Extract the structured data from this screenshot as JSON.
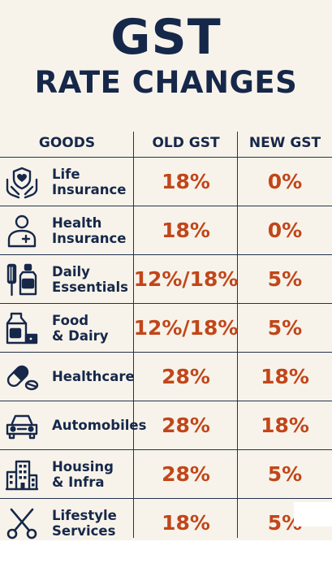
{
  "title": {
    "line1": "GST",
    "line2": "RATE CHANGES"
  },
  "colors": {
    "navy": "#16284a",
    "rate": "#c1461a",
    "background": "#f8f3ea"
  },
  "table": {
    "headers": {
      "goods": "GOODS",
      "old": "OLD GST",
      "new": "NEW GST"
    },
    "rows": [
      {
        "icon": "hands-shield-heart-icon",
        "goods": "Life\nInsurance",
        "old": "18%",
        "new": "0%"
      },
      {
        "icon": "person-medical-icon",
        "goods": "Health\nInsurance",
        "old": "18%",
        "new": "0%"
      },
      {
        "icon": "toothbrush-bottle-icon",
        "goods": "Daily\nEssentials",
        "old": "12%/18%",
        "new": "5%"
      },
      {
        "icon": "milk-carton-icon",
        "goods": "Food\n& Dairy",
        "old": "12%/18%",
        "new": "5%"
      },
      {
        "icon": "pill-capsule-icon",
        "goods": "Healthcare",
        "old": "28%",
        "new": "18%"
      },
      {
        "icon": "car-icon",
        "goods": "Automobiles",
        "old": "28%",
        "new": "18%"
      },
      {
        "icon": "buildings-icon",
        "goods": "Housing\n& Infra",
        "old": "28%",
        "new": "5%"
      },
      {
        "icon": "scissors-icon",
        "goods": "Lifestyle\nServices",
        "old": "18%",
        "new": "5%"
      }
    ]
  }
}
